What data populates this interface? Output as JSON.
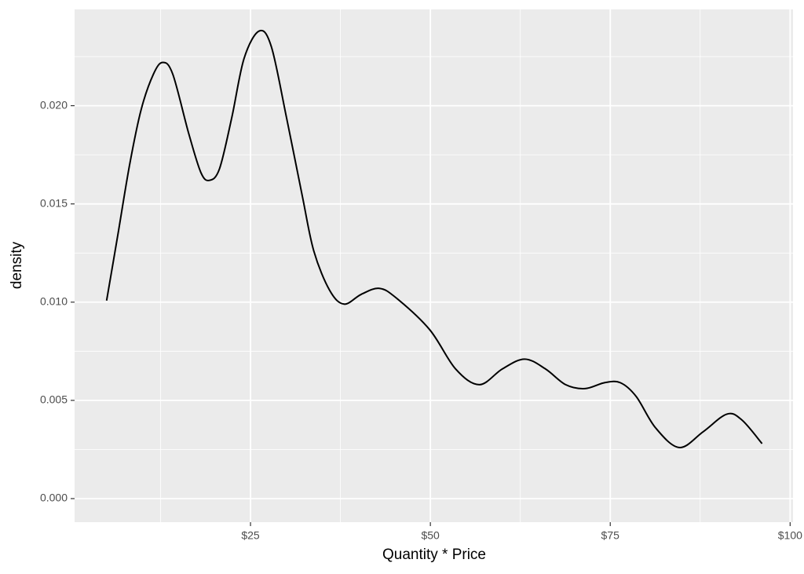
{
  "chart_data": {
    "type": "line",
    "x_label": "Quantity * Price",
    "y_label": "density",
    "x": [
      5.0,
      6.55,
      8.2,
      9.8,
      11.5,
      12.8,
      14.2,
      16.4,
      18.1,
      19.3,
      20.7,
      22.4,
      24.1,
      26.2,
      27.9,
      30.0,
      32.2,
      33.8,
      36.0,
      38.0,
      40.4,
      42.9,
      45.3,
      49.9,
      53.5,
      56.8,
      60.0,
      63.1,
      66.0,
      68.8,
      71.5,
      74.2,
      76.4,
      78.6,
      81.3,
      84.6,
      87.9,
      91.2,
      93.3,
      96.1
    ],
    "series": [
      {
        "color": "#000000",
        "values": [
          0.01008,
          0.0134,
          0.017,
          0.0198,
          0.0216,
          0.0222,
          0.0216,
          0.0186,
          0.0166,
          0.0162,
          0.0168,
          0.0194,
          0.0224,
          0.0238,
          0.023,
          0.0194,
          0.0154,
          0.0126,
          0.0106,
          0.0099,
          0.0104,
          0.0107,
          0.0102,
          0.0086,
          0.0066,
          0.0058,
          0.0066,
          0.0071,
          0.0066,
          0.0058,
          0.0056,
          0.0059,
          0.0059,
          0.0052,
          0.0036,
          0.0026,
          0.0034,
          0.0043,
          0.004,
          0.0028
        ]
      }
    ],
    "xlim": [
      0.55,
      100.4
    ],
    "ylim": [
      -0.0012,
      0.0249
    ],
    "xticks": [
      {
        "value": 25,
        "label": "$25"
      },
      {
        "value": 50,
        "label": "$50"
      },
      {
        "value": 75,
        "label": "$75"
      },
      {
        "value": 100,
        "label": "$100"
      }
    ],
    "yticks": [
      {
        "value": 0,
        "label": "0.000"
      },
      {
        "value": 0.005,
        "label": "0.005"
      },
      {
        "value": 0.01,
        "label": "0.010"
      },
      {
        "value": 0.015,
        "label": "0.015"
      },
      {
        "value": 0.02,
        "label": "0.020"
      }
    ],
    "x_minor_grid": [
      12.5,
      37.5,
      62.5,
      87.5
    ],
    "y_minor_grid": [
      0.0025,
      0.0075,
      0.0125,
      0.0175,
      0.0225
    ],
    "grid": true,
    "panel_color": "#ebebeb",
    "grid_color": "#ffffff"
  }
}
